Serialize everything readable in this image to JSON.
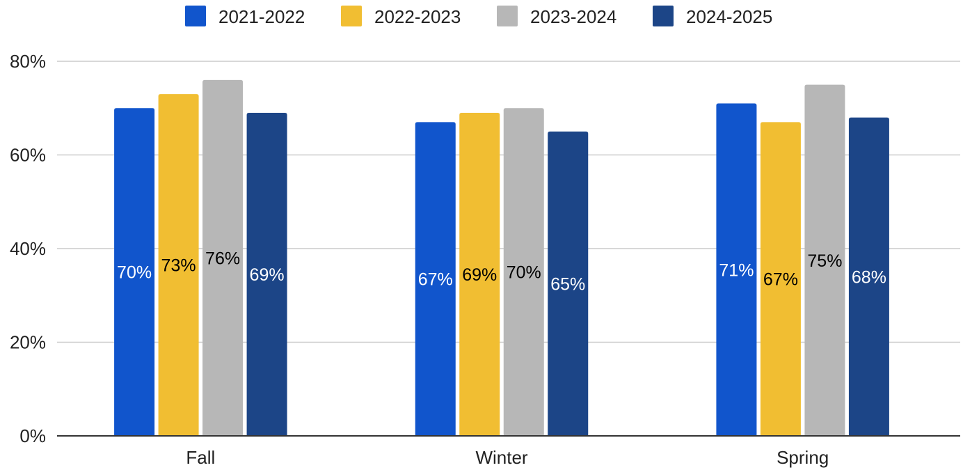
{
  "chart_data": {
    "type": "bar",
    "title": "",
    "xlabel": "",
    "ylabel": "",
    "categories": [
      "Fall",
      "Winter",
      "Spring"
    ],
    "series": [
      {
        "name": "2021-2022",
        "color": "#1155cc",
        "label_color": "#ffffff",
        "values": [
          70,
          67,
          71
        ],
        "labels": [
          "70%",
          "67%",
          "71%"
        ]
      },
      {
        "name": "2022-2023",
        "color": "#f1be32",
        "label_color": "#000000",
        "values": [
          73,
          69,
          67
        ],
        "labels": [
          "73%",
          "69%",
          "67%"
        ]
      },
      {
        "name": "2023-2024",
        "color": "#b7b7b7",
        "label_color": "#000000",
        "values": [
          76,
          70,
          75
        ],
        "labels": [
          "76%",
          "70%",
          "75%"
        ]
      },
      {
        "name": "2024-2025",
        "color": "#1c4587",
        "label_color": "#ffffff",
        "values": [
          69,
          65,
          68
        ],
        "labels": [
          "69%",
          "65%",
          "68%"
        ]
      }
    ],
    "ylim": [
      0,
      80
    ],
    "yticks": [
      0,
      20,
      40,
      60,
      80
    ],
    "ytick_labels": [
      "0%",
      "20%",
      "40%",
      "60%",
      "80%"
    ],
    "grid": true,
    "legend_position": "top-center"
  }
}
